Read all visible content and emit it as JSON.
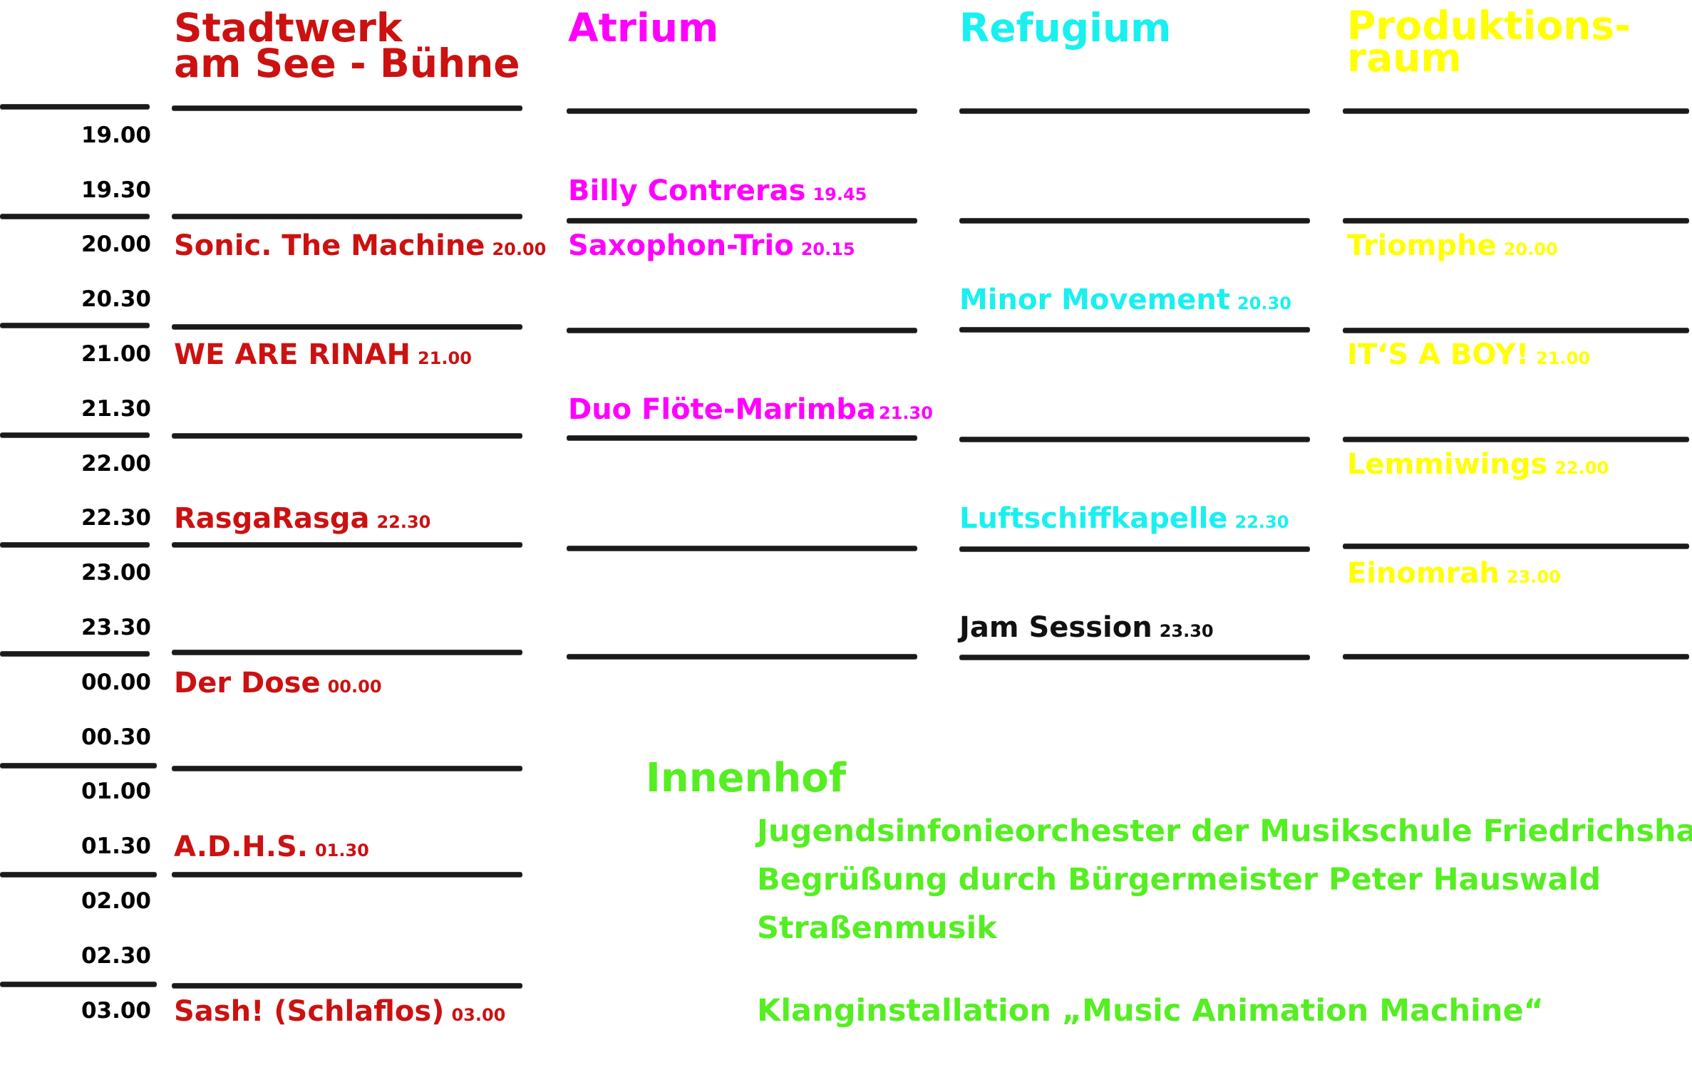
{
  "colors": {
    "stadtwerk": "#cc1111",
    "atrium": "#ff00ff",
    "refugium": "#19f0f0",
    "produktion": "#ffff00",
    "innenhof": "#55ee22",
    "jam": "#111111",
    "rule": "#1a1a1a"
  },
  "venues": {
    "stadtwerk": "Stadtwerk\nam See - Bühne",
    "atrium": "Atrium",
    "refugium": "Refugium",
    "produktion": "Produktions-\nraum"
  },
  "times": [
    "19.00",
    "19.30",
    "20.00",
    "20.30",
    "21.00",
    "21.30",
    "22.00",
    "22.30",
    "23.00",
    "23.30",
    "00.00",
    "00.30",
    "01.00",
    "01.30",
    "02.00",
    "02.30",
    "03.00"
  ],
  "acts": {
    "stadtwerk": [
      {
        "name": "Sonic. The Machine",
        "time": "20.00"
      },
      {
        "name": "WE ARE RINAH",
        "time": "21.00"
      },
      {
        "name": "RasgaRasga",
        "time": "22.30"
      },
      {
        "name": "Der Dose",
        "time": "00.00"
      },
      {
        "name": "A.D.H.S.",
        "time": "01.30"
      },
      {
        "name": "Sash! (Schlaflos)",
        "time": "03.00"
      }
    ],
    "atrium": [
      {
        "name": "Billy Contreras",
        "time": "19.45"
      },
      {
        "name": "Saxophon-Trio",
        "time": "20.15"
      },
      {
        "name": "Duo Flöte-Marimba",
        "time": "21.30"
      }
    ],
    "refugium": [
      {
        "name": "Minor Movement",
        "time": "20.30"
      },
      {
        "name": "Luftschiffkapelle",
        "time": "22.30"
      },
      {
        "name": "Jam Session",
        "time": "23.30"
      }
    ],
    "produktion": [
      {
        "name": "Triomphe",
        "time": "20.00"
      },
      {
        "name": "IT‘S A BOY!",
        "time": "21.00"
      },
      {
        "name": "Lemmiwings",
        "time": "22.00"
      },
      {
        "name": "Einomrah",
        "time": "23.00"
      }
    ]
  },
  "innenhof": {
    "title": "Innenhof",
    "items": [
      "Jugendsinfonieorchester der Musikschule Friedrichshafen",
      "Begrüßung durch Bürgermeister Peter Hauswald",
      "Straßenmusik",
      "Klanginstallation „Music Animation Machine“"
    ]
  }
}
